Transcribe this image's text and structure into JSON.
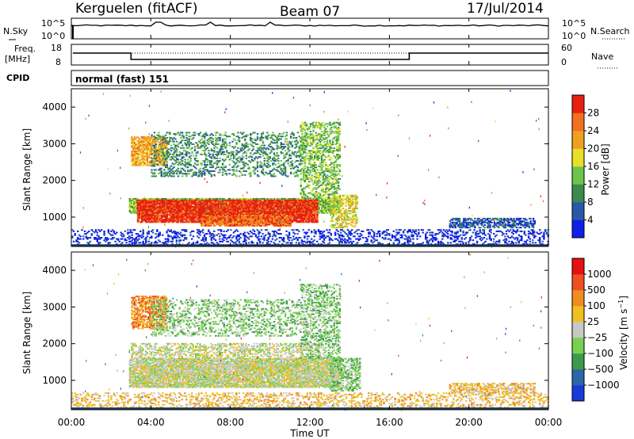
{
  "header": {
    "station": "Kerguelen (fitACF)",
    "beam": "Beam 07",
    "date": "17/Jul/2014"
  },
  "noise_panel": {
    "left_label": "N.Sky",
    "right_label": "N.Search",
    "tick_top": "10^5",
    "tick_bottom": "10^0"
  },
  "freq_panel": {
    "left_label_1": "Freq.",
    "left_label_2": "[MHz]",
    "left_ticks": [
      "18",
      "8"
    ],
    "right_label": "Nave",
    "right_ticks": [
      "60",
      "0"
    ]
  },
  "cpid": {
    "label": "CPID",
    "mode": "normal (fast) 151"
  },
  "chart_data": [
    {
      "type": "heatmap",
      "title": "",
      "xlabel": "Time UT",
      "ylabel": "Slant Range [km]",
      "x_ticks": [
        "00:00",
        "04:00",
        "08:00",
        "12:00",
        "16:00",
        "20:00",
        "00:00"
      ],
      "xlim_hours": [
        0,
        24
      ],
      "y_ticks": [
        1000,
        2000,
        3000,
        4000
      ],
      "ylim": [
        200,
        4500
      ],
      "colorbar": {
        "label": "Power [dB]",
        "ticks": [
          "4",
          "8",
          "12",
          "16",
          "20",
          "24",
          "28"
        ],
        "colors": [
          "#1020e8",
          "#2a58a8",
          "#3c8a4e",
          "#6cc44a",
          "#e8e028",
          "#f0a020",
          "#f07020",
          "#e82010"
        ]
      },
      "regions": [
        {
          "t0": 0.0,
          "t1": 24.0,
          "r0": 250,
          "r1": 650,
          "level": 0,
          "density": 0.28
        },
        {
          "t0": 2.9,
          "t1": 13.5,
          "r0": 1100,
          "r1": 1500,
          "level": 3,
          "density": 0.8
        },
        {
          "t0": 3.3,
          "t1": 12.4,
          "r0": 850,
          "r1": 1450,
          "level": 7,
          "density": 0.9
        },
        {
          "t0": 6.5,
          "t1": 11.0,
          "r0": 750,
          "r1": 1050,
          "level": 6,
          "density": 0.85
        },
        {
          "t0": 3.0,
          "t1": 4.8,
          "r0": 2400,
          "r1": 3200,
          "level": 5,
          "density": 0.7
        },
        {
          "t0": 4.0,
          "t1": 11.5,
          "r0": 2100,
          "r1": 3300,
          "level": 2,
          "density": 0.3
        },
        {
          "t0": 11.5,
          "t1": 13.5,
          "r0": 1500,
          "r1": 3600,
          "level": 3,
          "density": 0.45
        },
        {
          "t0": 13.0,
          "t1": 14.4,
          "r0": 700,
          "r1": 1600,
          "level": 4,
          "density": 0.55
        },
        {
          "t0": 19.0,
          "t1": 23.3,
          "r0": 700,
          "r1": 950,
          "level": 1,
          "density": 0.6
        }
      ]
    },
    {
      "type": "heatmap",
      "title": "",
      "xlabel": "Time UT",
      "ylabel": "Slant Range [km]",
      "x_ticks": [
        "00:00",
        "04:00",
        "08:00",
        "12:00",
        "16:00",
        "20:00",
        "00:00"
      ],
      "xlim_hours": [
        0,
        24
      ],
      "y_ticks": [
        1000,
        2000,
        3000,
        4000
      ],
      "ylim": [
        200,
        4500
      ],
      "colorbar": {
        "label": "Velocity [m s^-1]",
        "ticks": [
          "1000",
          "500",
          "100",
          "25",
          "−25",
          "−100",
          "−500",
          "−1000"
        ],
        "colors": [
          "#1a3ad8",
          "#2c66a8",
          "#3c9a4c",
          "#78d050",
          "#c8c8c4",
          "#f0c020",
          "#f08c20",
          "#f05020",
          "#e81010"
        ]
      },
      "regions": [
        {
          "t0": 0.0,
          "t1": 24.0,
          "r0": 250,
          "r1": 650,
          "level": 5,
          "density": 0.3
        },
        {
          "t0": 2.9,
          "t1": 13.5,
          "r0": 800,
          "r1": 1600,
          "level": 4,
          "density": 0.85
        },
        {
          "t0": 3.0,
          "t1": 12.5,
          "r0": 1600,
          "r1": 2000,
          "level": 4,
          "density": 0.4
        },
        {
          "t0": 3.0,
          "t1": 4.8,
          "r0": 2400,
          "r1": 3300,
          "level": 6,
          "density": 0.6
        },
        {
          "t0": 4.0,
          "t1": 11.5,
          "r0": 2200,
          "r1": 3200,
          "level": 3,
          "density": 0.3
        },
        {
          "t0": 11.5,
          "t1": 13.5,
          "r0": 1600,
          "r1": 3600,
          "level": 3,
          "density": 0.4
        },
        {
          "t0": 13.0,
          "t1": 14.5,
          "r0": 700,
          "r1": 1600,
          "level": 3,
          "density": 0.5
        },
        {
          "t0": 19.0,
          "t1": 23.3,
          "r0": 650,
          "r1": 900,
          "level": 5,
          "density": 0.55
        }
      ]
    }
  ]
}
